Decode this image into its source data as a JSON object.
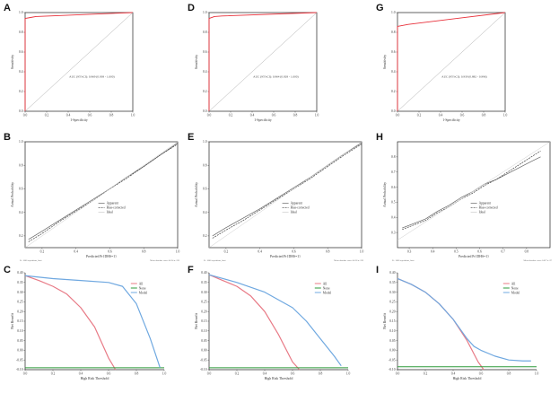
{
  "figure": {
    "panel_letters": [
      "A",
      "D",
      "G",
      "B",
      "E",
      "H",
      "C",
      "F",
      "I"
    ]
  },
  "colors": {
    "roc": "#e8303a",
    "diagonal": "#aaaaaa",
    "apparent": "#666666",
    "bias_corrected": "#444444",
    "ideal": "#cccccc",
    "all": "#e87a86",
    "none": "#2e9a3a",
    "model": "#6fa8e0"
  },
  "chart_data": [
    {
      "panel": "A",
      "type": "line",
      "kind": "roc",
      "xlabel": "1-Specificity",
      "ylabel": "Sensitivity",
      "xlim": [
        0,
        1
      ],
      "ylim": [
        0,
        1
      ],
      "xticks": [
        "0.0",
        "0.2",
        "0.4",
        "0.6",
        "0.8",
        "1.0"
      ],
      "yticks": [
        "0.0",
        "0.2",
        "0.4",
        "0.6",
        "0.8",
        "1.0"
      ],
      "annotation": "AUC (95%CI): 0.969 (0.938 - 1.000)",
      "series": [
        {
          "name": "ROC",
          "x": [
            0,
            0,
            0.05,
            0.1,
            1
          ],
          "y": [
            0,
            0.94,
            0.95,
            0.96,
            1
          ]
        },
        {
          "name": "Reference",
          "x": [
            0,
            1
          ],
          "y": [
            0,
            1
          ]
        }
      ]
    },
    {
      "panel": "D",
      "type": "line",
      "kind": "roc",
      "xlabel": "1-Specificity",
      "ylabel": "Sensitivity",
      "xlim": [
        0,
        1
      ],
      "ylim": [
        0,
        1
      ],
      "xticks": [
        "0.0",
        "0.2",
        "0.4",
        "0.6",
        "0.8",
        "1.0"
      ],
      "yticks": [
        "0.0",
        "0.2",
        "0.4",
        "0.6",
        "0.8",
        "1.0"
      ],
      "annotation": "AUC (95%CI): 0.964 (0.928 - 1.000)",
      "series": [
        {
          "name": "ROC",
          "x": [
            0,
            0,
            0.05,
            0.12,
            1
          ],
          "y": [
            0,
            0.94,
            0.96,
            0.965,
            1
          ]
        },
        {
          "name": "Reference",
          "x": [
            0,
            1
          ],
          "y": [
            0,
            1
          ]
        }
      ]
    },
    {
      "panel": "G",
      "type": "line",
      "kind": "roc",
      "xlabel": "1-Specificity",
      "ylabel": "Sensitivity",
      "xlim": [
        0,
        1
      ],
      "ylim": [
        0,
        1
      ],
      "xticks": [
        "0.0",
        "0.2",
        "0.4",
        "0.6",
        "0.8",
        "1.0"
      ],
      "yticks": [
        "0.0",
        "0.2",
        "0.4",
        "0.6",
        "0.8",
        "1.0"
      ],
      "annotation": "AUC (95%CI): 0.939 (0.882 - 0.996)",
      "series": [
        {
          "name": "ROC",
          "x": [
            0,
            0,
            0.05,
            0.1,
            1
          ],
          "y": [
            0,
            0.86,
            0.87,
            0.88,
            1
          ]
        },
        {
          "name": "Reference",
          "x": [
            0,
            1
          ],
          "y": [
            0,
            1
          ]
        }
      ]
    },
    {
      "panel": "B",
      "type": "line",
      "kind": "calibration",
      "xlabel": "Predicted Pr{DHS=1}",
      "ylabel": "Actual Probability",
      "xlim": [
        0.1,
        1.0
      ],
      "ylim": [
        0.1,
        1.0
      ],
      "xticks": [
        "0.2",
        "0.4",
        "0.6",
        "0.8",
        "1.0"
      ],
      "yticks": [
        "0.2",
        "0.4",
        "0.6",
        "0.8",
        "1.0"
      ],
      "legend": [
        "Apparent",
        "Bias-corrected",
        "Ideal"
      ],
      "footer_left": "B= 1000 repetitions, boot",
      "footer_right": "Mean absolute error=0.014 n=196",
      "series": [
        {
          "name": "Apparent",
          "x": [
            0.12,
            0.2,
            0.3,
            0.4,
            0.5,
            0.6,
            0.7,
            0.8,
            0.9,
            1.0
          ],
          "y": [
            0.17,
            0.24,
            0.33,
            0.42,
            0.51,
            0.6,
            0.7,
            0.79,
            0.89,
            0.99
          ]
        },
        {
          "name": "Bias-corrected",
          "x": [
            0.12,
            0.2,
            0.3,
            0.4,
            0.5,
            0.6,
            0.7,
            0.8,
            0.9,
            1.0
          ],
          "y": [
            0.15,
            0.22,
            0.32,
            0.41,
            0.5,
            0.6,
            0.69,
            0.79,
            0.89,
            0.98
          ]
        },
        {
          "name": "Ideal",
          "x": [
            0.1,
            1.0
          ],
          "y": [
            0.1,
            1.0
          ]
        }
      ]
    },
    {
      "panel": "E",
      "type": "line",
      "kind": "calibration",
      "xlabel": "Predicted Pr{DHS=1}",
      "ylabel": "Actual Probability",
      "xlim": [
        0.1,
        1.0
      ],
      "ylim": [
        0.1,
        1.0
      ],
      "xticks": [
        "0.2",
        "0.4",
        "0.6",
        "0.8",
        "1.0"
      ],
      "yticks": [
        "0.2",
        "0.4",
        "0.6",
        "0.8",
        "1.0"
      ],
      "legend": [
        "Apparent",
        "Bias-corrected",
        "Ideal"
      ],
      "footer_left": "B= 1000 repetitions, boot",
      "footer_right": "Mean absolute error=0.018 n=196",
      "series": [
        {
          "name": "Apparent",
          "x": [
            0.12,
            0.2,
            0.3,
            0.4,
            0.5,
            0.6,
            0.7,
            0.8,
            0.9,
            1.0
          ],
          "y": [
            0.2,
            0.27,
            0.35,
            0.43,
            0.52,
            0.61,
            0.7,
            0.8,
            0.9,
            0.99
          ]
        },
        {
          "name": "Bias-corrected",
          "x": [
            0.12,
            0.2,
            0.3,
            0.4,
            0.5,
            0.6,
            0.7,
            0.8,
            0.9,
            1.0
          ],
          "y": [
            0.18,
            0.25,
            0.33,
            0.42,
            0.51,
            0.6,
            0.69,
            0.79,
            0.89,
            0.98
          ]
        },
        {
          "name": "Ideal",
          "x": [
            0.1,
            1.0
          ],
          "y": [
            0.1,
            1.0
          ]
        }
      ]
    },
    {
      "panel": "H",
      "type": "line",
      "kind": "calibration",
      "xlabel": "Predicted Pr{DHS=1}",
      "ylabel": "Actual Probability",
      "xlim": [
        0.25,
        0.9
      ],
      "ylim": [
        0.2,
        0.9
      ],
      "xticks": [
        "0.3",
        "0.4",
        "0.5",
        "0.6",
        "0.7",
        "0.8"
      ],
      "yticks": [
        "0.3",
        "0.4",
        "0.5",
        "0.6",
        "0.7",
        "0.8"
      ],
      "legend": [
        "Apparent",
        "Bias-corrected",
        "Ideal"
      ],
      "footer_left": "B= 1000 repetitions, boot",
      "footer_right": "Mean absolute error=0.027 n=97",
      "series": [
        {
          "name": "Apparent",
          "x": [
            0.27,
            0.32,
            0.37,
            0.42,
            0.47,
            0.52,
            0.57,
            0.62,
            0.67,
            0.72,
            0.77,
            0.82,
            0.86
          ],
          "y": [
            0.33,
            0.36,
            0.39,
            0.44,
            0.48,
            0.53,
            0.57,
            0.62,
            0.65,
            0.69,
            0.73,
            0.77,
            0.8
          ]
        },
        {
          "name": "Bias-corrected",
          "x": [
            0.27,
            0.32,
            0.37,
            0.42,
            0.47,
            0.52,
            0.57,
            0.62,
            0.67,
            0.72,
            0.77,
            0.82,
            0.86
          ],
          "y": [
            0.32,
            0.35,
            0.38,
            0.43,
            0.47,
            0.52,
            0.56,
            0.61,
            0.65,
            0.7,
            0.75,
            0.8,
            0.84
          ]
        },
        {
          "name": "Ideal",
          "x": [
            0.25,
            0.9
          ],
          "y": [
            0.25,
            0.9
          ]
        }
      ]
    },
    {
      "panel": "C",
      "type": "line",
      "kind": "dca",
      "xlabel": "High Risk Threshold",
      "ylabel": "Net Benefit",
      "xlim": [
        0,
        1
      ],
      "ylim": [
        -0.1,
        0.4
      ],
      "xticks": [
        "0.0",
        "0.2",
        "0.4",
        "0.6",
        "0.8",
        "1.0"
      ],
      "yticks": [
        "-0.10",
        "-0.05",
        "0.00",
        "0.05",
        "0.10",
        "0.15",
        "0.20",
        "0.25",
        "0.30",
        "0.35",
        "0.40"
      ],
      "legend": [
        "All",
        "None",
        "Model"
      ],
      "series": [
        {
          "name": "All",
          "x": [
            0,
            0.1,
            0.2,
            0.3,
            0.4,
            0.5,
            0.6,
            0.65
          ],
          "y": [
            0.385,
            0.36,
            0.33,
            0.29,
            0.22,
            0.12,
            -0.04,
            -0.1
          ]
        },
        {
          "name": "None",
          "x": [
            0,
            1
          ],
          "y": [
            -0.09,
            -0.09
          ]
        },
        {
          "name": "Model",
          "x": [
            0,
            0.2,
            0.4,
            0.6,
            0.7,
            0.8,
            0.9,
            0.97
          ],
          "y": [
            0.385,
            0.37,
            0.36,
            0.35,
            0.33,
            0.24,
            0.06,
            -0.09
          ]
        }
      ]
    },
    {
      "panel": "F",
      "type": "line",
      "kind": "dca",
      "xlabel": "High Risk Threshold",
      "ylabel": "Net Benefit",
      "xlim": [
        0,
        1
      ],
      "ylim": [
        -0.1,
        0.4
      ],
      "xticks": [
        "0.0",
        "0.2",
        "0.4",
        "0.6",
        "0.8",
        "1.0"
      ],
      "yticks": [
        "-0.10",
        "-0.05",
        "0.00",
        "0.05",
        "0.10",
        "0.15",
        "0.20",
        "0.25",
        "0.30",
        "0.35",
        "0.40"
      ],
      "legend": [
        "All",
        "None",
        "Model"
      ],
      "series": [
        {
          "name": "All",
          "x": [
            0,
            0.1,
            0.2,
            0.3,
            0.4,
            0.5,
            0.6,
            0.65
          ],
          "y": [
            0.39,
            0.36,
            0.33,
            0.28,
            0.2,
            0.08,
            -0.06,
            -0.1
          ]
        },
        {
          "name": "None",
          "x": [
            0,
            1
          ],
          "y": [
            -0.09,
            -0.09
          ]
        },
        {
          "name": "Model",
          "x": [
            0,
            0.2,
            0.4,
            0.5,
            0.6,
            0.7,
            0.8,
            0.9,
            0.95
          ],
          "y": [
            0.39,
            0.35,
            0.3,
            0.26,
            0.22,
            0.15,
            0.06,
            -0.03,
            -0.08
          ]
        }
      ]
    },
    {
      "panel": "I",
      "type": "line",
      "kind": "dca",
      "xlabel": "High Risk Threshold",
      "ylabel": "Net Benefit",
      "xlim": [
        0,
        1
      ],
      "ylim": [
        -0.1,
        0.4
      ],
      "xticks": [
        "0.0",
        "0.2",
        "0.4",
        "0.6",
        "0.8",
        "1.0"
      ],
      "yticks": [
        "-0.10",
        "-0.05",
        "0.00",
        "0.05",
        "0.10",
        "0.15",
        "0.20",
        "0.25",
        "0.30",
        "0.35",
        "0.40"
      ],
      "legend": [
        "All",
        "None",
        "Model"
      ],
      "series": [
        {
          "name": "All",
          "x": [
            0,
            0.1,
            0.2,
            0.3,
            0.4,
            0.5,
            0.58,
            0.62
          ],
          "y": [
            0.37,
            0.34,
            0.3,
            0.24,
            0.16,
            0.05,
            -0.06,
            -0.1
          ]
        },
        {
          "name": "None",
          "x": [
            0,
            1
          ],
          "y": [
            -0.085,
            -0.085
          ]
        },
        {
          "name": "Model",
          "x": [
            0,
            0.1,
            0.2,
            0.3,
            0.4,
            0.5,
            0.55,
            0.6,
            0.7,
            0.8,
            0.9,
            0.96
          ],
          "y": [
            0.37,
            0.34,
            0.3,
            0.24,
            0.16,
            0.06,
            0.02,
            0.0,
            -0.03,
            -0.05,
            -0.055,
            -0.055
          ]
        }
      ]
    }
  ]
}
